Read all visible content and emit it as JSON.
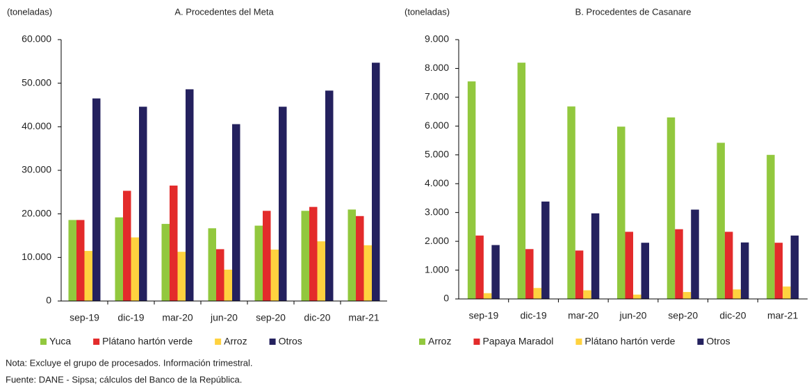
{
  "chart_data": [
    {
      "type": "bar",
      "title": "A. Procedentes del Meta",
      "y_label": "(toneladas)",
      "categories": [
        "sep-19",
        "dic-19",
        "mar-20",
        "jun-20",
        "sep-20",
        "dic-20",
        "mar-21"
      ],
      "series": [
        {
          "name": "Yuca",
          "color": "#92c83e",
          "values": [
            18600,
            19200,
            17700,
            16700,
            17300,
            20700,
            21000
          ]
        },
        {
          "name": "Plátano hartón verde",
          "color": "#e32b2b",
          "values": [
            18600,
            25300,
            26500,
            11900,
            20700,
            21600,
            19500
          ]
        },
        {
          "name": "Arroz",
          "color": "#ffd23f",
          "values": [
            11500,
            14600,
            11300,
            7200,
            11800,
            13700,
            12800
          ]
        },
        {
          "name": "Otros",
          "color": "#24215e",
          "values": [
            46500,
            44600,
            48600,
            40600,
            44600,
            48300,
            54700
          ]
        }
      ],
      "ylim": [
        0,
        60000
      ],
      "yticks": [
        0,
        {
          "value": 10000,
          "label": "10.000"
        },
        {
          "value": 20000,
          "label": "20.000"
        },
        {
          "value": 30000,
          "label": "30.000"
        },
        {
          "value": 40000,
          "label": "40.000"
        },
        {
          "value": 50000,
          "label": "50.000"
        },
        {
          "value": 60000,
          "label": "60.000"
        }
      ]
    },
    {
      "type": "bar",
      "title": "B. Procedentes de Casanare",
      "y_label": "(toneladas)",
      "categories": [
        "sep-19",
        "dic-19",
        "mar-20",
        "jun-20",
        "sep-20",
        "dic-20",
        "mar-21"
      ],
      "series": [
        {
          "name": "Arroz",
          "color": "#92c83e",
          "values": [
            7550,
            8200,
            6680,
            5980,
            6300,
            5420,
            5000
          ]
        },
        {
          "name": "Papaya Maradol",
          "color": "#e32b2b",
          "values": [
            2200,
            1730,
            1680,
            2330,
            2420,
            2330,
            1950
          ]
        },
        {
          "name": "Plátano hartón verde",
          "color": "#ffd23f",
          "values": [
            200,
            380,
            300,
            150,
            240,
            330,
            430
          ]
        },
        {
          "name": "Otros",
          "color": "#24215e",
          "values": [
            1870,
            3380,
            2970,
            1950,
            3100,
            1960,
            2200
          ]
        }
      ],
      "ylim": [
        0,
        9000
      ],
      "yticks": [
        0,
        {
          "value": 1000,
          "label": "1.000"
        },
        {
          "value": 2000,
          "label": "2.000"
        },
        {
          "value": 3000,
          "label": "3.000"
        },
        {
          "value": 4000,
          "label": "4.000"
        },
        {
          "value": 5000,
          "label": "5.000"
        },
        {
          "value": 6000,
          "label": "6.000"
        },
        {
          "value": 7000,
          "label": "7.000"
        },
        {
          "value": 8000,
          "label": "8.000"
        },
        {
          "value": 9000,
          "label": "9.000"
        }
      ]
    }
  ],
  "notes": [
    "Nota: Excluye el grupo de procesados. Información trimestral.",
    "Fuente: DANE - Sipsa; cálculos del Banco de la República."
  ]
}
